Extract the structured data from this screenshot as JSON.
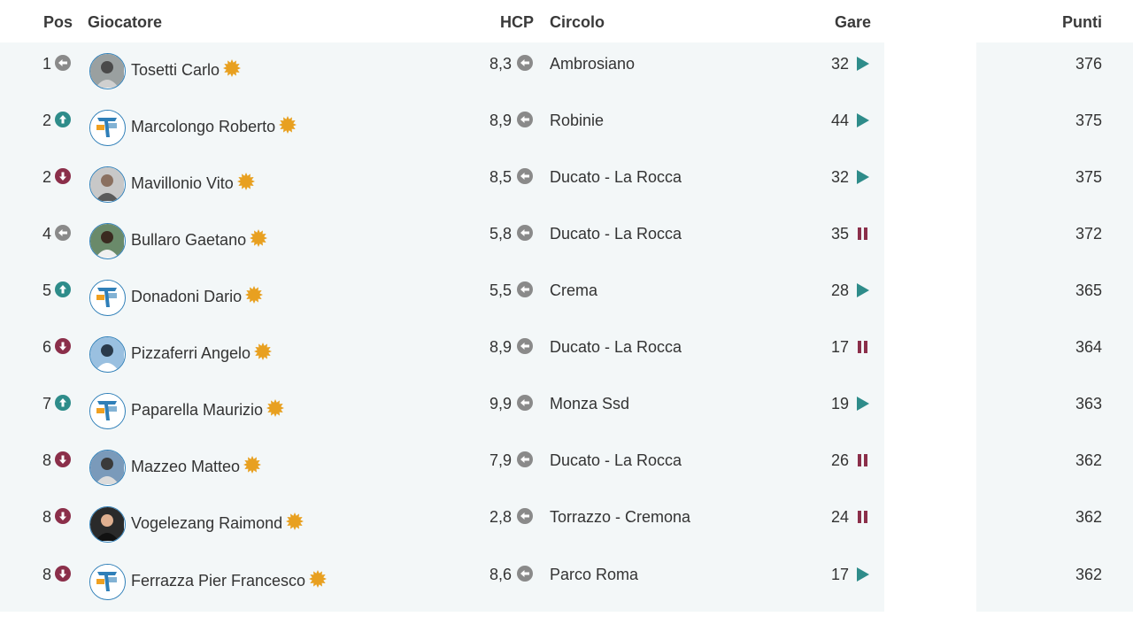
{
  "header": {
    "pos": "Pos",
    "giocatore": "Giocatore",
    "hcp": "HCP",
    "circolo": "Circolo",
    "gare": "Gare",
    "punti": "Punti"
  },
  "colors": {
    "trend_up": "#2e8c8a",
    "trend_down": "#8b2f4a",
    "trend_same": "#8a8a8a",
    "star": "#e8a020",
    "play": "#2e8c8a",
    "pause": "#8b2f4a",
    "panel_bg": "#f3f7f8"
  },
  "rows": [
    {
      "pos": "1",
      "trend": "same",
      "avatar": "photo-1",
      "name": "Tosetti Carlo",
      "hcp": "8,3",
      "circolo": "Ambrosiano",
      "gare": "32",
      "status": "play",
      "punti": "376"
    },
    {
      "pos": "2",
      "trend": "up",
      "avatar": "logo",
      "name": "Marcolongo Roberto",
      "hcp": "8,9",
      "circolo": "Robinie",
      "gare": "44",
      "status": "play",
      "punti": "375"
    },
    {
      "pos": "2",
      "trend": "down",
      "avatar": "photo-2",
      "name": "Mavillonio Vito",
      "hcp": "8,5",
      "circolo": "Ducato - La Rocca",
      "gare": "32",
      "status": "play",
      "punti": "375"
    },
    {
      "pos": "4",
      "trend": "same",
      "avatar": "photo-3",
      "name": "Bullaro Gaetano",
      "hcp": "5,8",
      "circolo": "Ducato - La Rocca",
      "gare": "35",
      "status": "pause",
      "punti": "372"
    },
    {
      "pos": "5",
      "trend": "up",
      "avatar": "logo",
      "name": "Donadoni Dario",
      "hcp": "5,5",
      "circolo": "Crema",
      "gare": "28",
      "status": "play",
      "punti": "365"
    },
    {
      "pos": "6",
      "trend": "down",
      "avatar": "photo-4",
      "name": "Pizzaferri Angelo",
      "hcp": "8,9",
      "circolo": "Ducato - La Rocca",
      "gare": "17",
      "status": "pause",
      "punti": "364"
    },
    {
      "pos": "7",
      "trend": "up",
      "avatar": "logo",
      "name": "Paparella Maurizio",
      "hcp": "9,9",
      "circolo": "Monza Ssd",
      "gare": "19",
      "status": "play",
      "punti": "363"
    },
    {
      "pos": "8",
      "trend": "down",
      "avatar": "photo-5",
      "name": "Mazzeo Matteo",
      "hcp": "7,9",
      "circolo": "Ducato - La Rocca",
      "gare": "26",
      "status": "pause",
      "punti": "362"
    },
    {
      "pos": "8",
      "trend": "down",
      "avatar": "photo-6",
      "name": "Vogelezang Raimond",
      "hcp": "2,8",
      "circolo": "Torrazzo - Cremona",
      "gare": "24",
      "status": "pause",
      "punti": "362"
    },
    {
      "pos": "8",
      "trend": "down",
      "avatar": "logo",
      "name": "Ferrazza Pier Francesco",
      "hcp": "8,6",
      "circolo": "Parco Roma",
      "gare": "17",
      "status": "play",
      "punti": "362"
    }
  ]
}
